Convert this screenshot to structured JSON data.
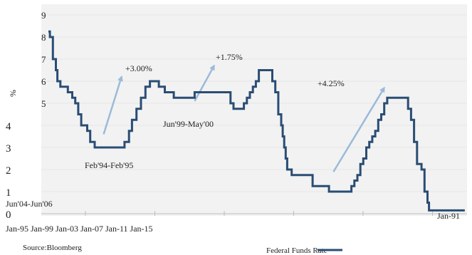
{
  "chart_data": {
    "type": "line",
    "ylabel": "%",
    "ylim": [
      0,
      9
    ],
    "y_ticks_inside": [
      5,
      6,
      7,
      8,
      9
    ],
    "y_ticks_outside": [
      0,
      1,
      2,
      3,
      4
    ],
    "x_tick_labels": [
      "Jan-95",
      "Jan-99",
      "Jan-03",
      "Jan-07",
      "Jan-11",
      "Jan-15"
    ],
    "x_tick_right": "Jan-91",
    "xlim": [
      1990,
      2018
    ],
    "grid": true,
    "series": [
      {
        "name": "Federal Funds Rate",
        "color": "#2a4d74",
        "points": [
          [
            1990.0,
            8.25
          ],
          [
            1990.1,
            8.0
          ],
          [
            1990.3,
            7.0
          ],
          [
            1990.5,
            6.5
          ],
          [
            1990.6,
            6.0
          ],
          [
            1990.8,
            5.75
          ],
          [
            1991.1,
            5.75
          ],
          [
            1991.3,
            5.5
          ],
          [
            1991.6,
            5.25
          ],
          [
            1991.8,
            5.0
          ],
          [
            1992.0,
            4.5
          ],
          [
            1992.2,
            4.0
          ],
          [
            1992.6,
            3.75
          ],
          [
            1992.8,
            3.25
          ],
          [
            1993.1,
            3.0
          ],
          [
            1994.9,
            3.0
          ],
          [
            1995.1,
            3.25
          ],
          [
            1995.4,
            3.75
          ],
          [
            1995.6,
            4.25
          ],
          [
            1995.9,
            4.75
          ],
          [
            1996.2,
            5.25
          ],
          [
            1996.5,
            5.75
          ],
          [
            1996.8,
            6.0
          ],
          [
            1997.2,
            6.0
          ],
          [
            1997.4,
            5.75
          ],
          [
            1997.8,
            5.5
          ],
          [
            1998.1,
            5.5
          ],
          [
            1998.4,
            5.25
          ],
          [
            1999.6,
            5.25
          ],
          [
            1999.8,
            5.5
          ],
          [
            2002.0,
            5.5
          ],
          [
            2002.2,
            5.0
          ],
          [
            2002.4,
            4.75
          ],
          [
            2002.9,
            4.75
          ],
          [
            2003.1,
            5.0
          ],
          [
            2003.3,
            5.25
          ],
          [
            2003.5,
            5.5
          ],
          [
            2003.7,
            5.75
          ],
          [
            2003.9,
            6.0
          ],
          [
            2004.1,
            6.5
          ],
          [
            2004.8,
            6.5
          ],
          [
            2005.0,
            6.0
          ],
          [
            2005.2,
            5.5
          ],
          [
            2005.4,
            4.5
          ],
          [
            2005.6,
            4.0
          ],
          [
            2005.7,
            3.5
          ],
          [
            2005.8,
            3.0
          ],
          [
            2005.9,
            2.5
          ],
          [
            2006.0,
            2.0
          ],
          [
            2006.3,
            1.75
          ],
          [
            2007.5,
            1.75
          ],
          [
            2007.7,
            1.25
          ],
          [
            2008.6,
            1.25
          ],
          [
            2008.8,
            1.0
          ],
          [
            2010.1,
            1.0
          ],
          [
            2010.3,
            1.25
          ],
          [
            2010.5,
            1.5
          ],
          [
            2010.7,
            1.75
          ],
          [
            2010.9,
            2.25
          ],
          [
            2011.1,
            2.5
          ],
          [
            2011.3,
            3.0
          ],
          [
            2011.5,
            3.25
          ],
          [
            2011.7,
            3.5
          ],
          [
            2011.9,
            3.75
          ],
          [
            2012.1,
            4.25
          ],
          [
            2012.3,
            4.5
          ],
          [
            2012.5,
            5.0
          ],
          [
            2012.7,
            5.25
          ],
          [
            2013.9,
            5.25
          ],
          [
            2014.1,
            4.75
          ],
          [
            2014.3,
            4.25
          ],
          [
            2014.5,
            3.25
          ],
          [
            2014.7,
            2.25
          ],
          [
            2015.0,
            2.0
          ],
          [
            2015.2,
            1.0
          ],
          [
            2015.4,
            0.5
          ],
          [
            2015.5,
            0.15
          ],
          [
            2017.9,
            0.15
          ]
        ]
      },
      {
        "name": "trend-arrows",
        "color": "#9bbad9",
        "arrows": [
          [
            [
              1993.7,
              3.6
            ],
            [
              1994.9,
              6.2
            ]
          ],
          [
            [
              1999.8,
              5.1
            ],
            [
              2001.1,
              6.7
            ]
          ],
          [
            [
              2009.1,
              1.9
            ],
            [
              2012.5,
              5.7
            ]
          ]
        ]
      }
    ],
    "annotations": [
      {
        "text": "+3.00%"
      },
      {
        "text": "+1.75%"
      },
      {
        "text": "+4.25%"
      },
      {
        "text": "Feb'94-Feb'95"
      },
      {
        "text": "Jun'99-May'00"
      },
      {
        "text": "Jun'04-Jun'06"
      }
    ],
    "legend": {
      "label": "Federal Funds Rate",
      "placement": "bottom-right"
    }
  },
  "footer": {
    "source": "Source:Bloomberg"
  }
}
